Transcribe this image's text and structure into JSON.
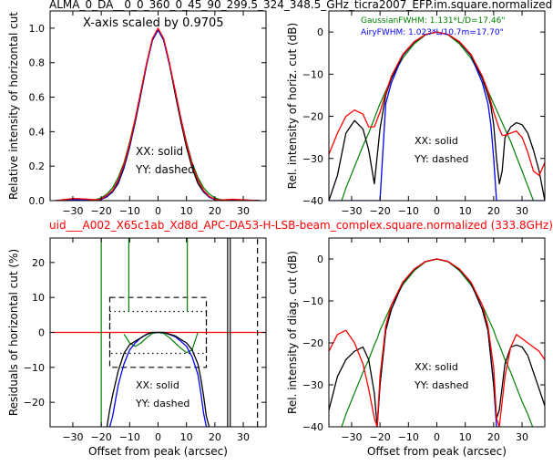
{
  "figure": {
    "top_title": "ALMA_0_DA__0_0_360_0_45_90_299.5_324_348.5_GHz_ticra2007_EFP.im.square.normalized",
    "mid_title": "uid___A002_X65c1ab_Xd8d_APC-DA53-H-LSB-beam_complex.square.normalized (333.8GHz)",
    "mid_title_color": "#ff0000"
  },
  "colors": {
    "xx": "#ff0000",
    "yy": "#0000ff",
    "model_xx": "#000000",
    "gaussian": "#008000",
    "airy": "#0000ff",
    "zero_line": "#ff0000"
  },
  "chart_data": [
    {
      "id": "top-left",
      "type": "line",
      "ylabel": "Relative intensity of horizontal cut",
      "xlabel": "",
      "xlim": [
        -38,
        38
      ],
      "ylim": [
        0,
        1.1
      ],
      "xticks": [
        -30,
        -20,
        -10,
        0,
        10,
        20,
        30
      ],
      "yticks": [
        0.0,
        0.2,
        0.4,
        0.6,
        0.8,
        1.0
      ],
      "xtick_labels": [
        "−30",
        "−20",
        "−10",
        "0",
        "10",
        "20",
        "30"
      ],
      "ytick_labels": [
        "0.0",
        "0.2",
        "0.4",
        "0.6",
        "0.8",
        "1.0"
      ],
      "annotation": "X-axis scaled by 0.9705",
      "legend_lines": [
        "XX: solid",
        "YY: dashed"
      ],
      "x": [
        -36,
        -30,
        -26,
        -22,
        -20,
        -18,
        -16,
        -14,
        -12,
        -10,
        -8,
        -6,
        -4,
        -2,
        0,
        2,
        4,
        6,
        8,
        10,
        12,
        14,
        16,
        18,
        20,
        22,
        26,
        30,
        36
      ],
      "series": [
        {
          "key": "red",
          "values": [
            0,
            0.012,
            0.01,
            0.004,
            0.01,
            0.03,
            0.06,
            0.12,
            0.21,
            0.33,
            0.48,
            0.64,
            0.8,
            0.94,
            1.0,
            0.94,
            0.8,
            0.64,
            0.48,
            0.33,
            0.21,
            0.12,
            0.06,
            0.025,
            0.008,
            0.003,
            0.008,
            0.004,
            0
          ]
        },
        {
          "key": "blue",
          "values": [
            0,
            0.006,
            0.006,
            0.003,
            0.008,
            0.025,
            0.055,
            0.11,
            0.2,
            0.32,
            0.47,
            0.63,
            0.79,
            0.93,
            0.99,
            0.93,
            0.79,
            0.64,
            0.48,
            0.33,
            0.21,
            0.12,
            0.055,
            0.02,
            0.006,
            0.002,
            0.006,
            0.003,
            0
          ]
        },
        {
          "key": "black",
          "values": [
            0,
            0.004,
            0.004,
            0.002,
            0.007,
            0.022,
            0.05,
            0.1,
            0.19,
            0.31,
            0.46,
            0.62,
            0.79,
            0.93,
            0.99,
            0.93,
            0.79,
            0.62,
            0.46,
            0.31,
            0.19,
            0.1,
            0.05,
            0.02,
            0.006,
            0.002,
            0.005,
            0.003,
            0
          ]
        },
        {
          "key": "green",
          "values": [
            0,
            0.0,
            0.001,
            0.006,
            0.016,
            0.038,
            0.075,
            0.135,
            0.22,
            0.34,
            0.48,
            0.63,
            0.79,
            0.93,
            0.99,
            0.93,
            0.79,
            0.63,
            0.48,
            0.34,
            0.22,
            0.135,
            0.075,
            0.038,
            0.016,
            0.006,
            0.001,
            0.0,
            0
          ]
        }
      ]
    },
    {
      "id": "top-right",
      "type": "line",
      "ylabel": "Rel. intensity of horiz. cut (dB)",
      "xlabel": "",
      "xlim": [
        -38,
        38
      ],
      "ylim": [
        -40,
        5
      ],
      "xticks": [
        -30,
        -20,
        -10,
        0,
        10,
        20,
        30
      ],
      "yticks": [
        -40,
        -30,
        -20,
        -10,
        0
      ],
      "xtick_labels": [
        "−30",
        "−20",
        "−10",
        "0",
        "10",
        "20",
        "30"
      ],
      "ytick_labels": [
        "−40",
        "−30",
        "−20",
        "−10",
        "0"
      ],
      "legend_lines": [
        "XX: solid",
        "YY: dashed"
      ],
      "fwhm_lines": [
        {
          "text": "GaussianFWHM: 1.131*L/D=17.46\"",
          "color": "#008000"
        },
        {
          "text": "AiryFWHM: 1.023*L/10.7m=17.70\"",
          "color": "#0000ff"
        }
      ],
      "x": [
        -38,
        -35,
        -32,
        -29,
        -26,
        -24,
        -22,
        -20,
        -18,
        -16,
        -12,
        -8,
        -4,
        0,
        4,
        8,
        12,
        16,
        18,
        19,
        20,
        21,
        22,
        23,
        24,
        26,
        28,
        30,
        32,
        34,
        36,
        38
      ],
      "series": [
        {
          "key": "red",
          "values": [
            -29,
            -24,
            -20,
            -18.5,
            -19.5,
            -22.5,
            -22.5,
            -19,
            -14.5,
            -10.5,
            -5.3,
            -2.3,
            -0.6,
            0,
            -0.6,
            -2.3,
            -5.3,
            -10.5,
            -14,
            -16.5,
            -19,
            -21,
            -23,
            -24.5,
            -24.5,
            -24,
            -23.5,
            -25,
            -28.5,
            -33,
            -34,
            -31
          ]
        },
        {
          "key": "black",
          "values": [
            -40,
            -34,
            -24,
            -21,
            -23,
            -28,
            -36,
            -23,
            -15,
            -11,
            -5.5,
            -2.4,
            -0.6,
            0,
            -0.6,
            -2.4,
            -5.5,
            -11,
            -15,
            -17.5,
            -22,
            -30,
            -36,
            -33,
            -25,
            -22.5,
            -21.5,
            -22,
            -24,
            -28,
            -33,
            -40
          ]
        },
        {
          "key": "blue",
          "values": [
            -40,
            -40,
            -40,
            -40,
            -40,
            -40,
            -40,
            -40,
            -17,
            -12,
            -5.6,
            -2.4,
            -0.6,
            0,
            -0.6,
            -2.4,
            -5.6,
            -12,
            -17,
            -22,
            -30,
            -40,
            -40,
            -40,
            -40,
            -40,
            -40,
            -40,
            -40,
            -40,
            -40,
            -40
          ]
        },
        {
          "key": "green",
          "values": [
            -48,
            -43,
            -37,
            -32,
            -27,
            -24,
            -20.5,
            -17,
            -14,
            -11,
            -6.2,
            -2.8,
            -0.7,
            0,
            -0.7,
            -2.8,
            -6.2,
            -11,
            -14,
            -15.5,
            -17,
            -18.5,
            -20,
            -21.5,
            -23,
            -26,
            -29.5,
            -33,
            -36.5,
            -40,
            -44,
            -48
          ]
        }
      ]
    },
    {
      "id": "bottom-left",
      "type": "line",
      "ylabel": "Residuals of horizontal cut (%)",
      "xlabel": "Offset from peak (arcsec)",
      "xlim": [
        -38,
        38
      ],
      "ylim": [
        -27,
        27
      ],
      "xticks": [
        -30,
        -20,
        -10,
        0,
        10,
        20,
        30
      ],
      "yticks": [
        -20,
        -10,
        0,
        10,
        20
      ],
      "xtick_labels": [
        "−30",
        "−20",
        "−10",
        "0",
        "10",
        "20",
        "30"
      ],
      "ytick_labels": [
        "−20",
        "−10",
        "0",
        "10",
        "20"
      ],
      "legend_lines": [
        "XX: solid",
        "YY: dashed"
      ],
      "dashed_box": {
        "x": [
          -17,
          17
        ],
        "y": [
          -10,
          10
        ]
      },
      "dotted_box": {
        "x": [
          -17,
          17
        ],
        "y": [
          -6,
          6
        ]
      },
      "zero_line": 0,
      "x": [
        -18,
        -17,
        -16,
        -14,
        -12,
        -10,
        -8,
        -6,
        -4,
        -2,
        0,
        2,
        4,
        6,
        8,
        10,
        12,
        14,
        15,
        16,
        17,
        18
      ],
      "series": [
        {
          "key": "black",
          "values": [
            -27,
            -22,
            -18,
            -11,
            -6,
            -3.5,
            -2.5,
            -1.5,
            -0.5,
            0,
            0,
            0,
            -0.5,
            -1,
            -2,
            -3,
            -5,
            -9,
            -13,
            -18,
            -24,
            -27
          ]
        },
        {
          "key": "blue",
          "values": [
            -27,
            -27,
            -24,
            -15,
            -9,
            -5,
            -3,
            -1.5,
            -0.6,
            0,
            0,
            0,
            -0.6,
            -1.2,
            -2.5,
            -4,
            -7,
            -12,
            -17,
            -23,
            -27,
            -27
          ]
        },
        {
          "key": "green",
          "values": [
            null,
            null,
            null,
            null,
            -0.5,
            -3,
            -4,
            -3,
            -1.5,
            -0.3,
            0,
            -0.3,
            -1.5,
            -3,
            -4.5,
            -5.8,
            -5,
            0,
            null,
            null,
            null,
            null
          ]
        }
      ]
    },
    {
      "id": "bottom-right",
      "type": "line",
      "ylabel": "Rel. intensity of diag. cut (dB)",
      "xlabel": "Offset from peak (arcsec)",
      "xlim": [
        -38,
        38
      ],
      "ylim": [
        -40,
        5
      ],
      "xticks": [
        -30,
        -20,
        -10,
        0,
        10,
        20,
        30
      ],
      "yticks": [
        -40,
        -30,
        -20,
        -10,
        0
      ],
      "xtick_labels": [
        "−30",
        "−20",
        "−10",
        "0",
        "10",
        "20",
        "30"
      ],
      "ytick_labels": [
        "−40",
        "−30",
        "−20",
        "−10",
        "0"
      ],
      "legend_lines": [
        "XX: solid",
        "YY: dashed"
      ],
      "x": [
        -38,
        -35,
        -32,
        -29,
        -26,
        -24,
        -22,
        -21,
        -20,
        -18,
        -16,
        -12,
        -8,
        -4,
        0,
        4,
        8,
        12,
        16,
        18,
        20,
        21,
        22,
        24,
        26,
        28,
        30,
        32,
        34,
        36,
        38
      ],
      "series": [
        {
          "key": "red",
          "values": [
            -22,
            -18,
            -17,
            -20,
            -25,
            -31,
            -38,
            -40,
            -28,
            -16,
            -11,
            -5.5,
            -2.4,
            -0.6,
            0,
            -0.6,
            -2.4,
            -5.5,
            -11,
            -16,
            -26,
            -38,
            -40,
            -28,
            -21,
            -18,
            -19,
            -20,
            -21,
            -22,
            -24
          ]
        },
        {
          "key": "black",
          "values": [
            -36,
            -28,
            -24,
            -22,
            -21,
            -24,
            -32,
            -40,
            -30,
            -17,
            -12,
            -5.7,
            -2.5,
            -0.6,
            0,
            -0.6,
            -2.5,
            -5.7,
            -12,
            -17,
            -30,
            -38,
            -36,
            -25,
            -21,
            -20.5,
            -21,
            -23,
            -27,
            -31,
            -35
          ]
        },
        {
          "key": "blue",
          "values": [
            null,
            null,
            null,
            null,
            null,
            null,
            -40,
            -40,
            -30,
            -17,
            -12,
            -5.7,
            -2.5,
            -0.6,
            0,
            -0.6,
            -2.5,
            -5.7,
            -12,
            -17,
            -30,
            -40,
            -40,
            null,
            null,
            null,
            null,
            null,
            null,
            null,
            null
          ]
        },
        {
          "key": "green",
          "values": [
            -48,
            -43,
            -37,
            -32,
            -27,
            -24,
            -20.5,
            -19,
            -17,
            -14,
            -11,
            -6.2,
            -2.8,
            -0.7,
            0,
            -0.7,
            -2.8,
            -6.2,
            -11,
            -14,
            -17,
            -19,
            -20.5,
            -24,
            -27,
            -30.5,
            -34,
            -37,
            -40.5,
            -44,
            -48
          ]
        }
      ]
    }
  ]
}
